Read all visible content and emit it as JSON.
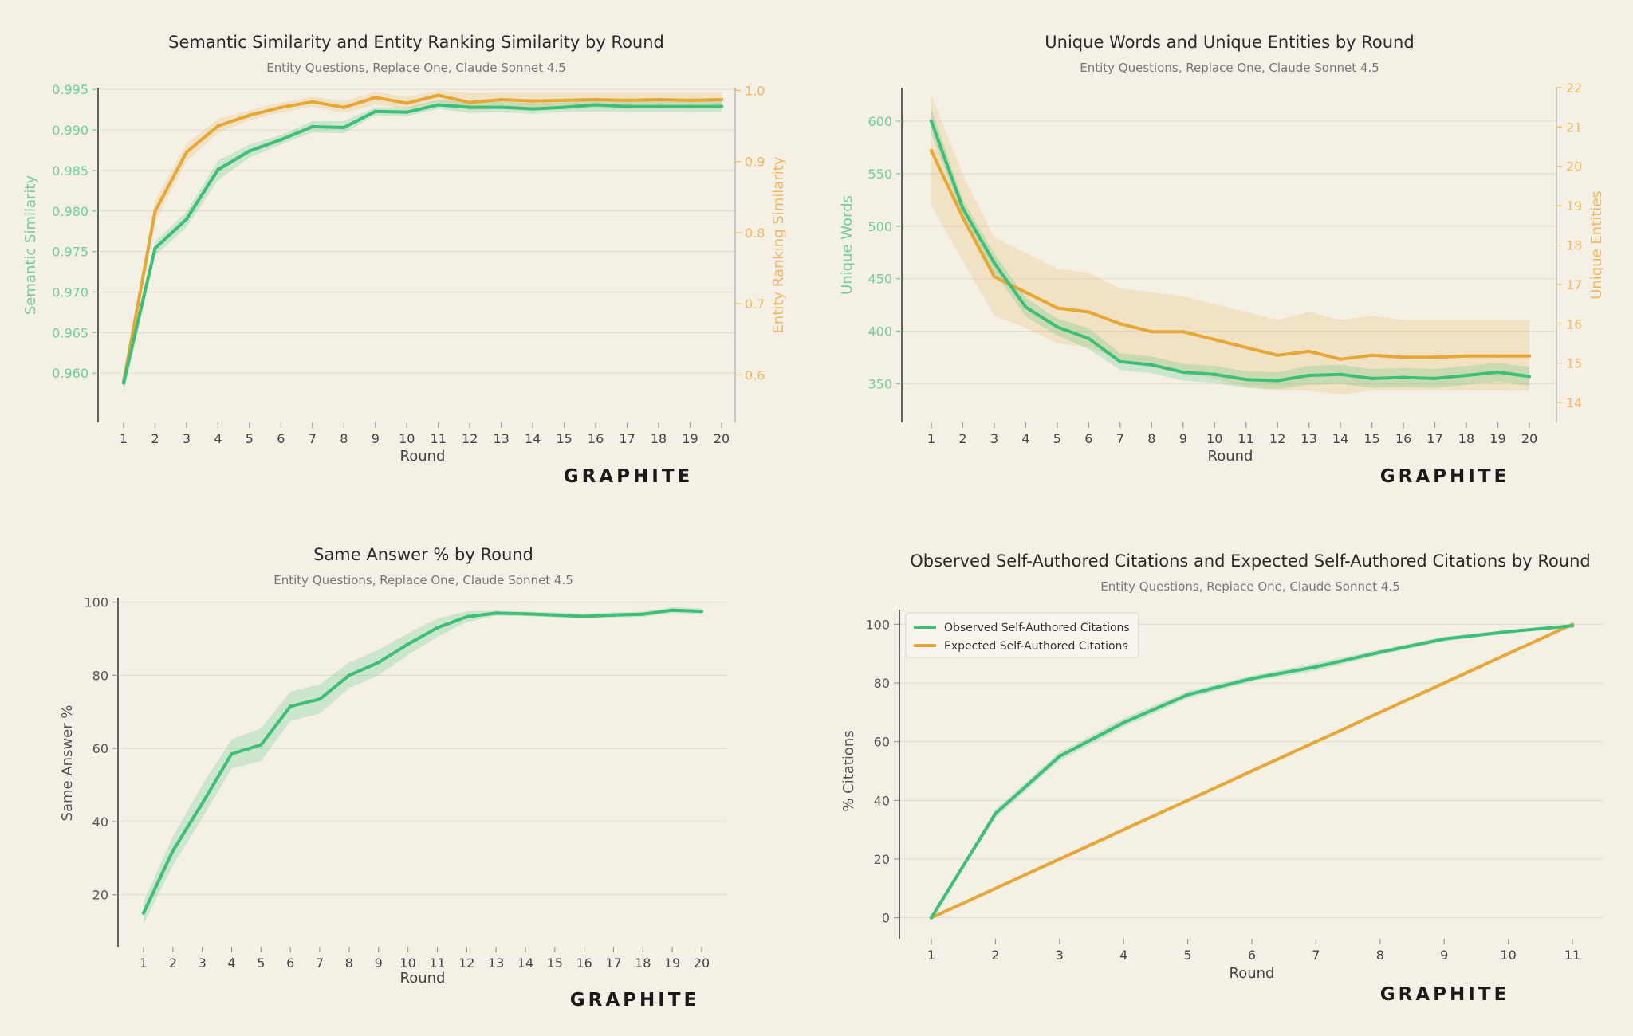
{
  "colors": {
    "background": "#f5f0e6",
    "green": "#3dbf78",
    "orange": "#e6a734",
    "green_text": "#6fcf97",
    "orange_text": "#f0b860",
    "grid": "#e2ddd2",
    "axis": "#333333",
    "title": "#2a2a2a",
    "subtitle": "#777777"
  },
  "branding": {
    "logo_text": "GRAPHITE"
  },
  "chart_data": [
    {
      "type": "line",
      "title": "Semantic Similarity and Entity Ranking Similarity by Round",
      "subtitle": "Entity Questions, Replace One, Claude Sonnet 4.5",
      "xlabel": "Round",
      "ylabel": "Semantic Similarity",
      "ylabel_right": "Entity Ranking Similarity",
      "x": [
        1,
        2,
        3,
        4,
        5,
        6,
        7,
        8,
        9,
        10,
        11,
        12,
        13,
        14,
        15,
        16,
        17,
        18,
        19,
        20
      ],
      "ylim": [
        0.9554,
        0.9962
      ],
      "yticks": [
        0.96,
        0.965,
        0.97,
        0.975,
        0.98,
        0.985,
        0.99,
        0.995
      ],
      "yticklabels": [
        "0.960",
        "0.965",
        "0.970",
        "0.975",
        "0.980",
        "0.985",
        "0.990",
        "0.995"
      ],
      "ylim_right": [
        0.55,
        1.015
      ],
      "yticks_right": [
        0.6,
        0.7,
        0.8,
        0.9,
        1.0
      ],
      "yticklabels_right": [
        "0.6",
        "0.7",
        "0.8",
        "0.9",
        "1.0"
      ],
      "grid": true,
      "series": [
        {
          "axis": "left",
          "color": "green",
          "values": [
            0.9588,
            0.9754,
            0.979,
            0.9851,
            0.9874,
            0.9888,
            0.9904,
            0.9903,
            0.9923,
            0.9922,
            0.9931,
            0.9928,
            0.9928,
            0.9926,
            0.9928,
            0.9931,
            0.9929,
            0.9929,
            0.9929,
            0.9929
          ],
          "lower": [
            0.9575,
            0.9745,
            0.978,
            0.9838,
            0.9866,
            0.9882,
            0.9897,
            0.9896,
            0.9918,
            0.9917,
            0.9926,
            0.9921,
            0.9922,
            0.992,
            0.9922,
            0.9923,
            0.9922,
            0.9922,
            0.9922,
            0.9922
          ],
          "upper": [
            0.96,
            0.9762,
            0.9799,
            0.9862,
            0.9882,
            0.9894,
            0.9911,
            0.9911,
            0.9928,
            0.9928,
            0.9937,
            0.9936,
            0.9935,
            0.9933,
            0.9934,
            0.9938,
            0.9936,
            0.9936,
            0.9935,
            0.9936
          ]
        },
        {
          "axis": "right",
          "color": "orange",
          "values": [
            0.59,
            0.83,
            0.913,
            0.95,
            0.965,
            0.976,
            0.984,
            0.976,
            0.99,
            0.982,
            0.993,
            0.983,
            0.987,
            0.985,
            0.986,
            0.987,
            0.986,
            0.987,
            0.986,
            0.987
          ],
          "lower": [
            0.58,
            0.815,
            0.9,
            0.94,
            0.958,
            0.969,
            0.977,
            0.968,
            0.98,
            0.974,
            0.984,
            0.972,
            0.975,
            0.973,
            0.974,
            0.975,
            0.974,
            0.975,
            0.974,
            0.975
          ],
          "upper": [
            0.6,
            0.845,
            0.925,
            0.96,
            0.972,
            0.983,
            0.991,
            0.985,
            0.998,
            0.991,
            1.0,
            0.996,
            0.997,
            0.997,
            0.997,
            0.997,
            0.997,
            0.997,
            0.997,
            0.997
          ]
        }
      ]
    },
    {
      "type": "line",
      "title": "Unique Words and Unique Entities by Round",
      "subtitle": "Entity Questions, Replace One, Claude Sonnet 4.5",
      "xlabel": "Round",
      "ylabel": "Unique Words",
      "ylabel_right": "Unique Entities",
      "x": [
        1,
        2,
        3,
        4,
        5,
        6,
        7,
        8,
        9,
        10,
        11,
        12,
        13,
        14,
        15,
        16,
        17,
        18,
        19,
        20
      ],
      "ylim": [
        324.6,
        639.4
      ],
      "yticks": [
        350,
        400,
        450,
        500,
        550,
        600
      ],
      "yticklabels": [
        "350",
        "400",
        "450",
        "500",
        "550",
        "600"
      ],
      "ylim_right": [
        13.8,
        22.2
      ],
      "yticks_right": [
        14,
        15,
        16,
        17,
        18,
        19,
        20,
        21,
        22
      ],
      "yticklabels_right": [
        "14",
        "15",
        "16",
        "17",
        "18",
        "19",
        "20",
        "21",
        "22"
      ],
      "grid": true,
      "series": [
        {
          "axis": "left",
          "color": "green",
          "values": [
            600,
            517,
            465,
            423,
            404,
            393,
            371,
            368,
            361,
            359,
            354,
            353,
            358,
            359,
            355,
            356,
            355,
            358,
            361,
            357
          ],
          "lower": [
            588,
            509,
            456,
            414,
            396,
            383,
            363,
            360,
            353,
            351,
            346,
            345,
            349,
            350,
            346,
            347,
            346,
            349,
            352,
            348
          ],
          "upper": [
            612,
            525,
            474,
            432,
            412,
            403,
            379,
            376,
            369,
            367,
            362,
            361,
            367,
            368,
            364,
            365,
            364,
            367,
            370,
            366
          ]
        },
        {
          "axis": "right",
          "color": "orange",
          "values": [
            20.4,
            18.7,
            17.2,
            16.8,
            16.4,
            16.3,
            16.0,
            15.8,
            15.8,
            15.6,
            15.4,
            15.2,
            15.3,
            15.1,
            15.2,
            15.15,
            15.15,
            15.18,
            15.18,
            15.18
          ],
          "lower": [
            19.0,
            17.6,
            16.2,
            15.9,
            15.5,
            15.4,
            15.1,
            14.9,
            14.8,
            14.6,
            14.4,
            14.3,
            14.3,
            14.2,
            14.3,
            14.3,
            14.3,
            14.3,
            14.3,
            14.3
          ],
          "upper": [
            21.8,
            19.8,
            18.2,
            17.8,
            17.4,
            17.3,
            16.9,
            16.8,
            16.7,
            16.5,
            16.3,
            16.1,
            16.3,
            16.1,
            16.2,
            16.1,
            16.1,
            16.1,
            16.1,
            16.1
          ]
        }
      ]
    },
    {
      "type": "line",
      "title": "Same Answer % by Round",
      "subtitle": "Entity Questions, Replace One, Claude Sonnet 4.5",
      "xlabel": "Round",
      "ylabel": "Same Answer %",
      "x": [
        1,
        2,
        3,
        4,
        5,
        6,
        7,
        8,
        9,
        10,
        11,
        12,
        13,
        14,
        15,
        16,
        17,
        18,
        19,
        20
      ],
      "ylim": [
        8.6,
        103.4
      ],
      "yticks": [
        20,
        40,
        60,
        80,
        100
      ],
      "yticklabels": [
        "20",
        "40",
        "60",
        "80",
        "100"
      ],
      "grid": true,
      "series": [
        {
          "axis": "left",
          "color": "green",
          "values": [
            15,
            32,
            45,
            58.5,
            61,
            71.5,
            73.5,
            80,
            83.5,
            88.5,
            93,
            96,
            97,
            96.8,
            96.5,
            96.1,
            96.5,
            96.7,
            97.8,
            97.5
          ],
          "lower": [
            12,
            28,
            41,
            54.5,
            56.5,
            67.5,
            69.5,
            76.5,
            80,
            85.5,
            90.5,
            94.5,
            96.3,
            96.2,
            95.8,
            95.5,
            95.8,
            96,
            97,
            96.7
          ],
          "upper": [
            18,
            36,
            50,
            62.5,
            65.5,
            75.5,
            77.5,
            83.5,
            87,
            91.5,
            95.5,
            97.5,
            97.7,
            97.4,
            97.2,
            96.8,
            97.2,
            97.4,
            98.6,
            98.3
          ]
        }
      ]
    },
    {
      "type": "line",
      "title": "Observed Self-Authored Citations and Expected Self-Authored Citations by Round",
      "subtitle": "Entity Questions, Replace One, Claude Sonnet 4.5",
      "xlabel": "Round",
      "ylabel": "% Citations",
      "x": [
        1,
        2,
        3,
        4,
        5,
        6,
        7,
        8,
        9,
        10,
        11
      ],
      "ylim": [
        -5,
        105
      ],
      "yticks": [
        0,
        20,
        40,
        60,
        80,
        100
      ],
      "yticklabels": [
        "0",
        "20",
        "40",
        "60",
        "80",
        "100"
      ],
      "grid": true,
      "legend_position": "top-left",
      "series": [
        {
          "name": "Observed Self-Authored Citations",
          "axis": "left",
          "color": "green",
          "values": [
            0,
            35.5,
            55,
            66.5,
            76,
            81.5,
            85.5,
            90.5,
            95,
            97.5,
            99.5
          ],
          "lower": [
            0,
            34,
            53.5,
            65,
            74.8,
            80.5,
            84.2,
            89.6,
            94.2,
            96.9,
            99.2
          ],
          "upper": [
            0,
            37,
            56.5,
            68,
            77.2,
            82.5,
            86.8,
            91.4,
            95.8,
            98.1,
            99.8
          ]
        },
        {
          "name": "Expected Self-Authored Citations",
          "axis": "left",
          "color": "orange",
          "values": [
            0,
            10,
            20,
            30,
            40,
            50,
            60,
            70,
            80,
            90,
            100
          ]
        }
      ]
    }
  ]
}
